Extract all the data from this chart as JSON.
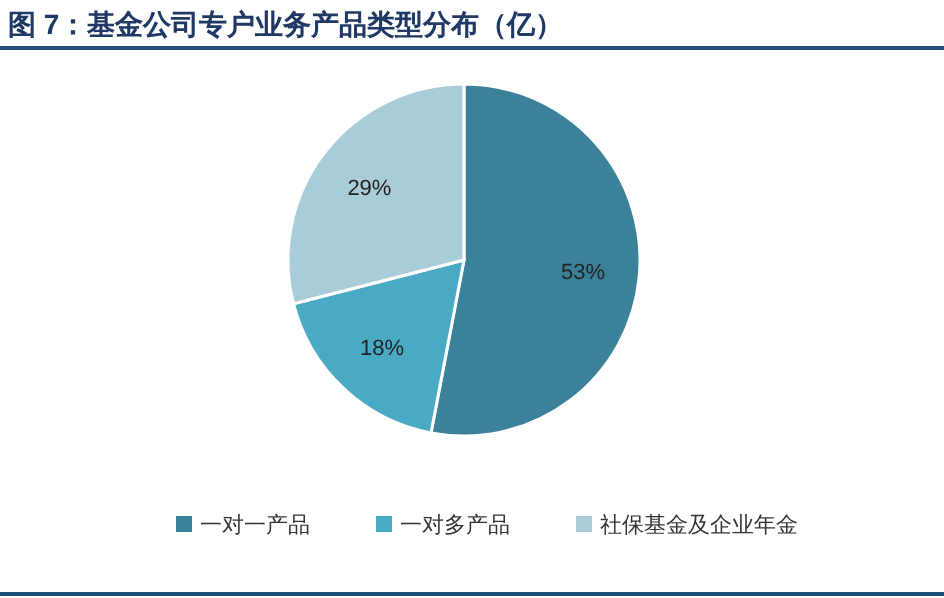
{
  "chart_data": {
    "type": "pie",
    "title": "图 7：基金公司专户业务产品类型分布（亿）",
    "categories": [
      "一对一产品",
      "一对多产品",
      "社保基金及企业年金"
    ],
    "values": [
      53,
      18,
      29
    ],
    "colors": [
      "#3b8199",
      "#4aaac4",
      "#a8ccd8"
    ],
    "value_labels": [
      "53%",
      "18%",
      "29%"
    ],
    "legend": "bottom"
  }
}
